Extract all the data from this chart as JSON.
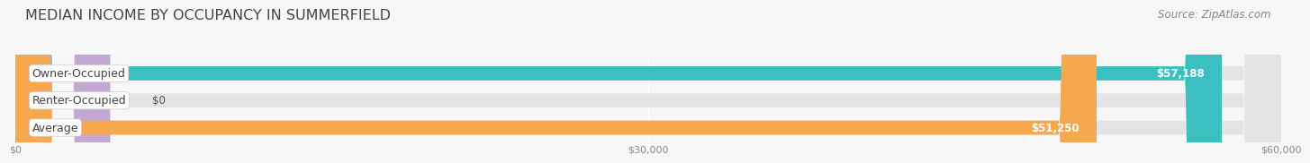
{
  "title": "MEDIAN INCOME BY OCCUPANCY IN SUMMERFIELD",
  "source": "Source: ZipAtlas.com",
  "categories": [
    "Owner-Occupied",
    "Renter-Occupied",
    "Average"
  ],
  "values": [
    57188,
    0,
    51250
  ],
  "bar_colors": [
    "#3bbfc0",
    "#c4a8d4",
    "#f5a84e"
  ],
  "bar_bg_color": "#e4e4e4",
  "value_labels": [
    "$57,188",
    "$0",
    "$51,250"
  ],
  "xlim": [
    0,
    60000
  ],
  "xticks": [
    0,
    30000,
    60000
  ],
  "xtick_labels": [
    "$0",
    "$30,000",
    "$60,000"
  ],
  "background_color": "#f7f7f7",
  "title_fontsize": 11.5,
  "source_fontsize": 8.5,
  "label_fontsize": 9,
  "value_fontsize": 8.5,
  "bar_height": 0.52,
  "grid_color": "#ffffff",
  "text_color": "#555555",
  "label_text_color": "#444444",
  "white_text_color": "#ffffff"
}
